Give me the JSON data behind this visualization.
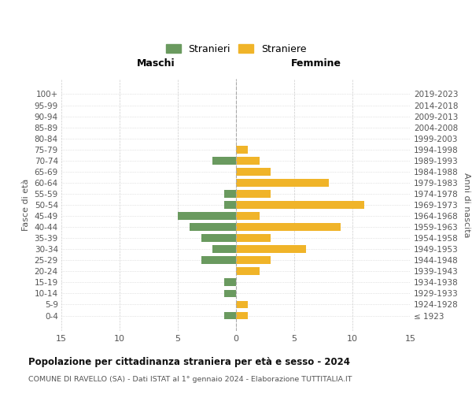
{
  "age_groups": [
    "100+",
    "95-99",
    "90-94",
    "85-89",
    "80-84",
    "75-79",
    "70-74",
    "65-69",
    "60-64",
    "55-59",
    "50-54",
    "45-49",
    "40-44",
    "35-39",
    "30-34",
    "25-29",
    "20-24",
    "15-19",
    "10-14",
    "5-9",
    "0-4"
  ],
  "birth_years": [
    "≤ 1923",
    "1924-1928",
    "1929-1933",
    "1934-1938",
    "1939-1943",
    "1944-1948",
    "1949-1953",
    "1954-1958",
    "1959-1963",
    "1964-1968",
    "1969-1973",
    "1974-1978",
    "1979-1983",
    "1984-1988",
    "1989-1993",
    "1994-1998",
    "1999-2003",
    "2004-2008",
    "2009-2013",
    "2014-2018",
    "2019-2023"
  ],
  "maschi": [
    0,
    0,
    0,
    0,
    0,
    0,
    2,
    0,
    0,
    1,
    1,
    5,
    4,
    3,
    2,
    3,
    0,
    1,
    1,
    0,
    1
  ],
  "femmine": [
    0,
    0,
    0,
    0,
    0,
    1,
    2,
    3,
    8,
    3,
    11,
    2,
    9,
    3,
    6,
    3,
    2,
    0,
    0,
    1,
    1
  ],
  "maschi_color": "#6a9a5f",
  "femmine_color": "#f0b429",
  "background_color": "#ffffff",
  "grid_color": "#cccccc",
  "title": "Popolazione per cittadinanza straniera per età e sesso - 2024",
  "subtitle": "COMUNE DI RAVELLO (SA) - Dati ISTAT al 1° gennaio 2024 - Elaborazione TUTTITALIA.IT",
  "xlabel_left": "Maschi",
  "xlabel_right": "Femmine",
  "ylabel_left": "Fasce di età",
  "ylabel_right": "Anni di nascita",
  "legend_maschi": "Stranieri",
  "legend_femmine": "Straniere",
  "xlim": 15,
  "bar_height": 0.7
}
